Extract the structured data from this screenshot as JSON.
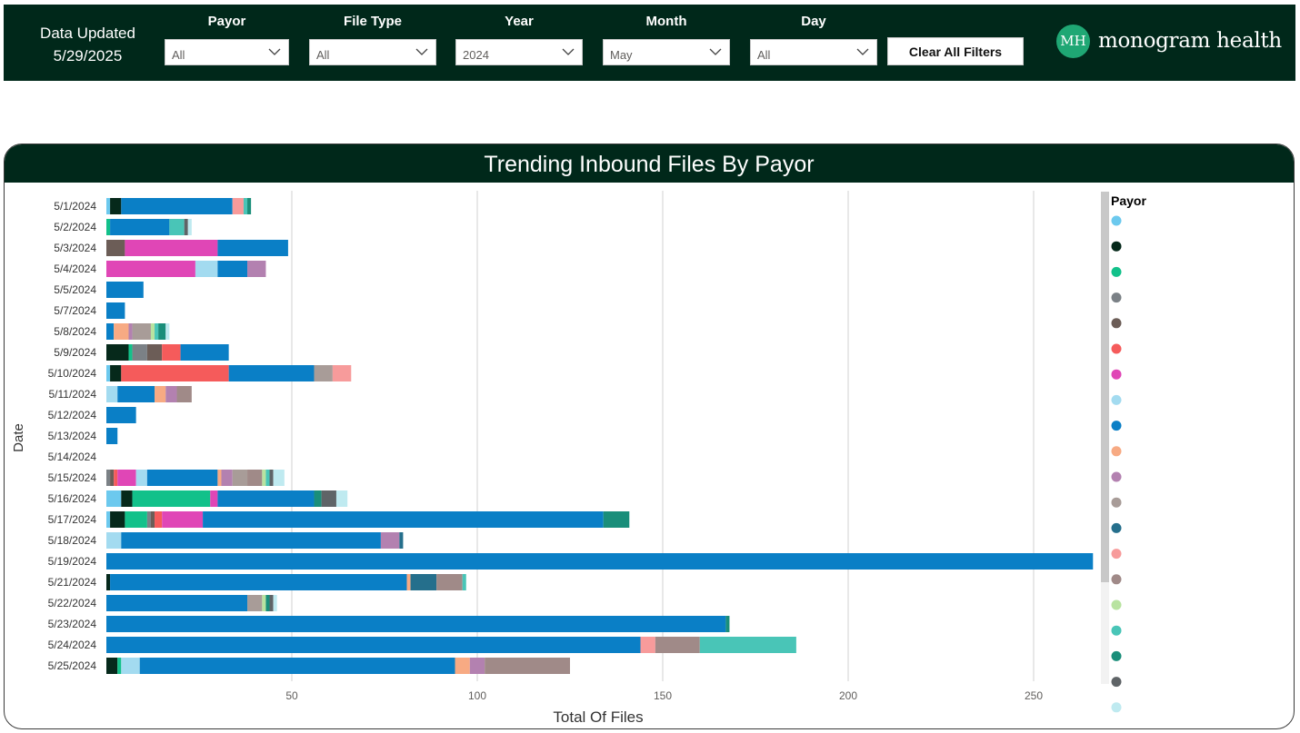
{
  "header": {
    "updated_label": "Data Updated",
    "updated_date": "5/29/2025",
    "filters": [
      {
        "label": "Payor",
        "value": "All"
      },
      {
        "label": "File Type",
        "value": "All"
      },
      {
        "label": "Year",
        "value": "2024"
      },
      {
        "label": "Month",
        "value": "May"
      },
      {
        "label": "Day",
        "value": "All"
      }
    ],
    "clear_label": "Clear All Filters",
    "logo_mark": "MH",
    "logo_text": "monogram health"
  },
  "panel": {
    "title": "Trending Inbound Files By Payor"
  },
  "colors": {
    "header_bg": "#00281a",
    "gridline": "#d9d9d9",
    "palette": [
      "#6cc9ee",
      "#06291b",
      "#12c18a",
      "#7b8186",
      "#6c5d57",
      "#f55b5b",
      "#e046b6",
      "#a3dbf0",
      "#0a7fc6",
      "#f7aa83",
      "#b381b0",
      "#a89c98",
      "#256f8c",
      "#f79b9b",
      "#a08a88",
      "#b8e3a0",
      "#49c5b7",
      "#1a8e7a",
      "#5f6467",
      "#bfeaf0"
    ]
  },
  "chart_data": {
    "type": "bar",
    "orientation": "horizontal",
    "stacked": true,
    "title": "Trending Inbound Files By Payor",
    "xlabel": "Total Of Files",
    "ylabel": "Date",
    "xlim": [
      0,
      270
    ],
    "xticks": [
      50,
      100,
      150,
      200,
      250
    ],
    "grid": true,
    "legend_title": "Payor",
    "legend_position": "right",
    "categories": [
      "5/1/2024",
      "5/2/2024",
      "5/3/2024",
      "5/4/2024",
      "5/5/2024",
      "5/7/2024",
      "5/8/2024",
      "5/9/2024",
      "5/10/2024",
      "5/11/2024",
      "5/12/2024",
      "5/13/2024",
      "5/14/2024",
      "5/15/2024",
      "5/16/2024",
      "5/17/2024",
      "5/18/2024",
      "5/19/2024",
      "5/21/2024",
      "5/22/2024",
      "5/23/2024",
      "5/24/2024",
      "5/25/2024"
    ],
    "series": [
      {
        "color": "#6cc9ee",
        "values": [
          1,
          0,
          0,
          0,
          0,
          0,
          0,
          0,
          1,
          0,
          0,
          0,
          0,
          0,
          4,
          1,
          0,
          0,
          0,
          0,
          0,
          0,
          0
        ]
      },
      {
        "color": "#06291b",
        "values": [
          3,
          0,
          0,
          0,
          0,
          0,
          0,
          6,
          3,
          0,
          0,
          0,
          0,
          0,
          3,
          4,
          0,
          0,
          1,
          0,
          0,
          0,
          3
        ]
      },
      {
        "color": "#12c18a",
        "values": [
          0,
          1,
          0,
          0,
          0,
          0,
          0,
          1,
          0,
          0,
          0,
          0,
          0,
          0,
          21,
          6,
          0,
          0,
          0,
          0,
          0,
          0,
          1
        ]
      },
      {
        "color": "#7b8186",
        "values": [
          0,
          0,
          0,
          0,
          0,
          0,
          0,
          4,
          0,
          0,
          0,
          0,
          0,
          1,
          0,
          1,
          0,
          0,
          0,
          0,
          0,
          0,
          0
        ]
      },
      {
        "color": "#6c5d57",
        "values": [
          0,
          0,
          5,
          0,
          0,
          0,
          0,
          4,
          0,
          0,
          0,
          0,
          0,
          1,
          0,
          1,
          0,
          0,
          0,
          0,
          0,
          0,
          0
        ]
      },
      {
        "color": "#f55b5b",
        "values": [
          0,
          0,
          0,
          0,
          0,
          0,
          0,
          5,
          29,
          0,
          0,
          0,
          0,
          1,
          0,
          2,
          0,
          0,
          0,
          0,
          0,
          0,
          0
        ]
      },
      {
        "color": "#e046b6",
        "values": [
          0,
          0,
          25,
          24,
          0,
          0,
          0,
          0,
          0,
          0,
          0,
          0,
          0,
          5,
          2,
          11,
          0,
          0,
          0,
          0,
          0,
          0,
          0
        ]
      },
      {
        "color": "#a3dbf0",
        "values": [
          0,
          0,
          0,
          6,
          0,
          0,
          0,
          0,
          0,
          3,
          0,
          0,
          0,
          3,
          0,
          0,
          4,
          0,
          0,
          0,
          0,
          0,
          5
        ]
      },
      {
        "color": "#0a7fc6",
        "values": [
          30,
          16,
          19,
          8,
          10,
          5,
          2,
          13,
          23,
          10,
          8,
          3,
          0,
          19,
          26,
          108,
          70,
          266,
          80,
          38,
          167,
          144,
          85
        ]
      },
      {
        "color": "#f7aa83",
        "values": [
          0,
          0,
          0,
          0,
          0,
          0,
          4,
          0,
          0,
          3,
          0,
          0,
          0,
          1,
          0,
          0,
          0,
          0,
          1,
          0,
          0,
          0,
          4
        ]
      },
      {
        "color": "#b381b0",
        "values": [
          0,
          0,
          0,
          5,
          0,
          0,
          1,
          0,
          0,
          3,
          0,
          0,
          0,
          3,
          0,
          0,
          5,
          0,
          0,
          0,
          0,
          0,
          4
        ]
      },
      {
        "color": "#a89c98",
        "values": [
          0,
          0,
          0,
          0,
          0,
          0,
          5,
          0,
          5,
          0,
          0,
          0,
          0,
          4,
          0,
          0,
          0,
          0,
          0,
          4,
          0,
          0,
          0
        ]
      },
      {
        "color": "#256f8c",
        "values": [
          0,
          0,
          0,
          0,
          0,
          0,
          0,
          0,
          0,
          0,
          0,
          0,
          0,
          0,
          0,
          0,
          1,
          0,
          7,
          0,
          0,
          0,
          0
        ]
      },
      {
        "color": "#f79b9b",
        "values": [
          3,
          0,
          0,
          0,
          0,
          0,
          0,
          0,
          5,
          0,
          0,
          0,
          0,
          0,
          0,
          0,
          0,
          0,
          0,
          0,
          0,
          4,
          0
        ]
      },
      {
        "color": "#a08a88",
        "values": [
          0,
          0,
          0,
          0,
          0,
          0,
          0,
          0,
          0,
          4,
          0,
          0,
          0,
          4,
          0,
          0,
          0,
          0,
          7,
          0,
          0,
          12,
          23
        ]
      },
      {
        "color": "#b8e3a0",
        "values": [
          0,
          0,
          0,
          0,
          0,
          0,
          1,
          0,
          0,
          0,
          0,
          0,
          0,
          1,
          0,
          0,
          0,
          0,
          0,
          1,
          0,
          0,
          0
        ]
      },
      {
        "color": "#49c5b7",
        "values": [
          1,
          4,
          0,
          0,
          0,
          0,
          1,
          0,
          0,
          0,
          0,
          0,
          0,
          1,
          0,
          0,
          0,
          0,
          1,
          0,
          0,
          26,
          0
        ]
      },
      {
        "color": "#1a8e7a",
        "values": [
          1,
          0,
          0,
          0,
          0,
          0,
          2,
          0,
          0,
          0,
          0,
          0,
          0,
          0,
          2,
          7,
          0,
          0,
          0,
          1,
          1,
          0,
          0
        ]
      },
      {
        "color": "#5f6467",
        "values": [
          0,
          1,
          0,
          0,
          0,
          0,
          0,
          0,
          0,
          0,
          0,
          0,
          0,
          1,
          4,
          0,
          0,
          0,
          0,
          1,
          0,
          0,
          0
        ]
      },
      {
        "color": "#bfeaf0",
        "values": [
          0,
          1,
          0,
          0,
          0,
          0,
          1,
          0,
          0,
          0,
          0,
          0,
          0,
          3,
          3,
          0,
          0,
          0,
          0,
          1,
          0,
          0,
          0
        ]
      }
    ]
  }
}
